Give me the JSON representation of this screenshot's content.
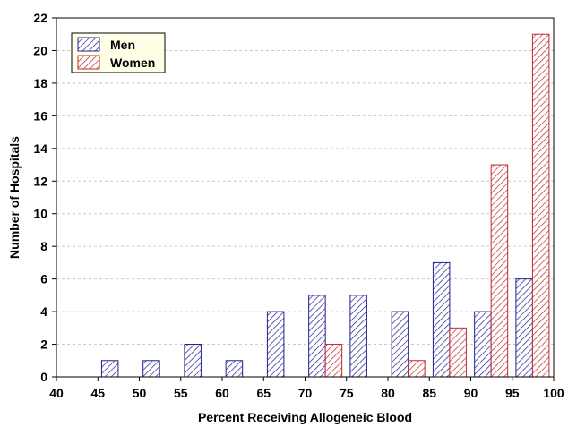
{
  "chart_data": {
    "type": "bar",
    "title": "",
    "xlabel": "Percent Receiving Allogeneic Blood",
    "ylabel": "Number of Hospitals",
    "xlim": [
      40,
      100
    ],
    "ylim": [
      0,
      22
    ],
    "x_ticks": [
      "40",
      "45",
      "50",
      "55",
      "60",
      "65",
      "70",
      "75",
      "80",
      "85",
      "90",
      "95",
      "100"
    ],
    "y_ticks": [
      "0",
      "2",
      "4",
      "6",
      "8",
      "10",
      "12",
      "14",
      "16",
      "18",
      "20",
      "22"
    ],
    "bins": [
      [
        45,
        50
      ],
      [
        50,
        55
      ],
      [
        55,
        60
      ],
      [
        60,
        65
      ],
      [
        65,
        70
      ],
      [
        70,
        75
      ],
      [
        75,
        80
      ],
      [
        80,
        85
      ],
      [
        85,
        90
      ],
      [
        90,
        95
      ],
      [
        95,
        100
      ]
    ],
    "series": [
      {
        "name": "Men",
        "color": "#1f1f8f",
        "pattern": "diagonal-hatch",
        "values": [
          1,
          1,
          2,
          1,
          4,
          5,
          5,
          4,
          7,
          4,
          6
        ]
      },
      {
        "name": "Women",
        "color": "#c0282d",
        "pattern": "diagonal-hatch",
        "values": [
          0,
          0,
          0,
          0,
          0,
          2,
          0,
          1,
          3,
          13,
          21
        ]
      }
    ],
    "grid": "horizontal-dashed",
    "legend_position": "top-left"
  }
}
